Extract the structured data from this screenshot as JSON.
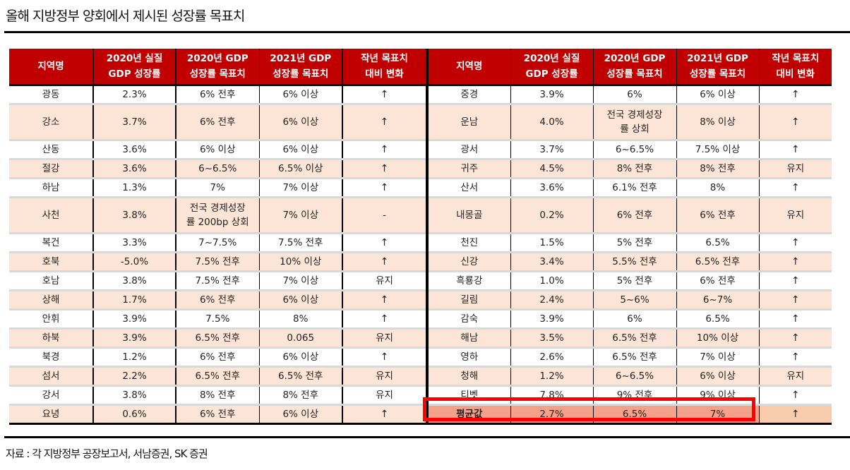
{
  "title": "올해 지방정부 양회에서 제시된 성장률 목표치",
  "source": "자료 : 각 지방정부 공장보고서, 서남증권, SK 증권",
  "headers": {
    "region": "지역명",
    "gdp2020": [
      "2020년 실질",
      "GDP 성장률"
    ],
    "target2020": [
      "2020년 GDP",
      "성장률 목표치"
    ],
    "target2021": [
      "2021년 GDP",
      "성장률 목표치"
    ],
    "change": [
      "작년 목표치",
      "대비 변화"
    ]
  },
  "colors": {
    "header_bg": "#c00000",
    "alt_row_bg": "#fce4d6",
    "change_text": "#ff0000",
    "avg_row_bg": "#f4a18c",
    "highlight_border": "#ff0000"
  },
  "left_table": [
    {
      "region": "광동",
      "gdp2020": "2.3%",
      "target2020": "6% 전후",
      "target2021": "6% 이상",
      "change": "↑",
      "tall": false
    },
    {
      "region": "강소",
      "gdp2020": "3.7%",
      "target2020": "6% 전후",
      "target2021": "6% 이상",
      "change": "↑",
      "tall": true
    },
    {
      "region": "산동",
      "gdp2020": "3.6%",
      "target2020": "6% 이상",
      "target2021": "6% 이상",
      "change": "↑",
      "tall": false
    },
    {
      "region": "절강",
      "gdp2020": "3.6%",
      "target2020": "6~6.5%",
      "target2021": "6.5% 이상",
      "change": "↑",
      "tall": false
    },
    {
      "region": "하남",
      "gdp2020": "1.3%",
      "target2020": "7%",
      "target2021": "7% 이상",
      "change": "↑",
      "tall": false
    },
    {
      "region": "사천",
      "gdp2020": "3.8%",
      "target2020": "전국 경제성장\n률 200bp 상회",
      "target2021": "7% 이상",
      "change": "-",
      "tall": true
    },
    {
      "region": "복건",
      "gdp2020": "3.3%",
      "target2020": "7~7.5%",
      "target2021": "7.5% 전후",
      "change": "↑",
      "tall": false
    },
    {
      "region": "호북",
      "gdp2020": "-5.0%",
      "target2020": "7.5% 전후",
      "target2021": "10% 이상",
      "change": "↑",
      "tall": false
    },
    {
      "region": "호남",
      "gdp2020": "3.8%",
      "target2020": "7.5% 전후",
      "target2021": "7% 이상",
      "change": "유지",
      "tall": false
    },
    {
      "region": "상해",
      "gdp2020": "1.7%",
      "target2020": "6% 전후",
      "target2021": "6% 이상",
      "change": "↑",
      "tall": false
    },
    {
      "region": "안휘",
      "gdp2020": "3.9%",
      "target2020": "7.5%",
      "target2021": "8%",
      "change": "↑",
      "tall": false
    },
    {
      "region": "하북",
      "gdp2020": "3.9%",
      "target2020": "6.5% 전후",
      "target2021": "0.065",
      "change": "유지",
      "tall": false
    },
    {
      "region": "북경",
      "gdp2020": "1.2%",
      "target2020": "6% 전후",
      "target2021": "6% 이상",
      "change": "↑",
      "tall": false
    },
    {
      "region": "섬서",
      "gdp2020": "2.2%",
      "target2020": "6.5% 전후",
      "target2021": "6.5% 전후",
      "change": "유지",
      "tall": false
    },
    {
      "region": "강서",
      "gdp2020": "3.8%",
      "target2020": "8% 전후",
      "target2021": "8% 전후",
      "change": "유지",
      "tall": false
    },
    {
      "region": "요녕",
      "gdp2020": "0.6%",
      "target2020": "6% 전후",
      "target2021": "6% 이상",
      "change": "↑",
      "tall": false
    }
  ],
  "right_table": [
    {
      "region": "중경",
      "gdp2020": "3.9%",
      "target2020": "6%",
      "target2021": "6% 이상",
      "change": "↑",
      "tall": false
    },
    {
      "region": "운남",
      "gdp2020": "4.0%",
      "target2020": "전국 경제성장\n률 상회",
      "target2021": "8% 이상",
      "change": "↑",
      "tall": true
    },
    {
      "region": "광서",
      "gdp2020": "3.7%",
      "target2020": "6~6.5%",
      "target2021": "7.5% 이상",
      "change": "↑",
      "tall": false
    },
    {
      "region": "귀주",
      "gdp2020": "4.5%",
      "target2020": "8% 전후",
      "target2021": "8% 전후",
      "change": "유지",
      "tall": false
    },
    {
      "region": "산서",
      "gdp2020": "3.6%",
      "target2020": "6.1% 전후",
      "target2021": "8%",
      "change": "↑",
      "tall": false
    },
    {
      "region": "내몽골",
      "gdp2020": "0.2%",
      "target2020": "6% 전후",
      "target2021": "6% 전후",
      "change": "유지",
      "tall": true
    },
    {
      "region": "천진",
      "gdp2020": "1.5%",
      "target2020": "5% 전후",
      "target2021": "6.5%",
      "change": "↑",
      "tall": false
    },
    {
      "region": "신강",
      "gdp2020": "3.4%",
      "target2020": "5.5% 전후",
      "target2021": "6.5% 전후",
      "change": "↑",
      "tall": false
    },
    {
      "region": "흑룡강",
      "gdp2020": "1.0%",
      "target2020": "5% 전후",
      "target2021": "6% 전후",
      "change": "↑",
      "tall": false
    },
    {
      "region": "길림",
      "gdp2020": "2.4%",
      "target2020": "5~6%",
      "target2021": "6~7%",
      "change": "↑",
      "tall": false
    },
    {
      "region": "감숙",
      "gdp2020": "3.9%",
      "target2020": "6%",
      "target2021": "6.5%",
      "change": "↑",
      "tall": false
    },
    {
      "region": "해남",
      "gdp2020": "3.5%",
      "target2020": "6.5% 전후",
      "target2021": "10% 이상",
      "change": "↑",
      "tall": false
    },
    {
      "region": "영하",
      "gdp2020": "2.6%",
      "target2020": "6.5% 전후",
      "target2021": "7% 이상",
      "change": "↑",
      "tall": false
    },
    {
      "region": "청해",
      "gdp2020": "1.2%",
      "target2020": "6~6.5%",
      "target2021": "6% 이상",
      "change": "유지",
      "tall": false
    },
    {
      "region": "티벳",
      "gdp2020": "7.8%",
      "target2020": "9% 전후",
      "target2021": "9% 이상",
      "change": "↑",
      "tall": false
    },
    {
      "region": "평균값",
      "gdp2020": "2.7%",
      "target2020": "6.5%",
      "target2021": "7%",
      "change": "↑",
      "tall": false,
      "average": true
    }
  ]
}
